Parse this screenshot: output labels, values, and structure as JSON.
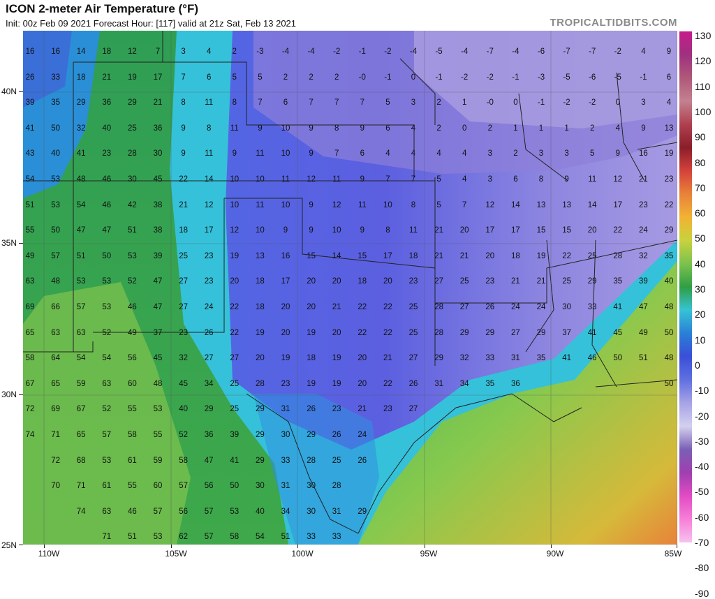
{
  "header": {
    "title": "ICON 2-meter Air Temperature (°F)",
    "subtitle": "Init: 00z Feb 09 2021   Forecast Hour: [117]   valid at 21z Sat, Feb 13 2021",
    "brand": "TROPICALTIDBITS.COM"
  },
  "axes": {
    "lat_labels": [
      "40N",
      "35N",
      "30N",
      "25N"
    ],
    "lon_labels": [
      "110W",
      "105W",
      "100W",
      "95W",
      "90W",
      "85W"
    ]
  },
  "colorbar": {
    "labels": [
      "130",
      "120",
      "110",
      "100",
      "90",
      "80",
      "70",
      "60",
      "50",
      "40",
      "30",
      "20",
      "10",
      "0",
      "-10",
      "-20",
      "-30",
      "-40",
      "-50",
      "-60",
      "-70",
      "-80",
      "-90"
    ],
    "colors": [
      "#c51b8a",
      "#a03080",
      "#b0587a",
      "#c3818f",
      "#b04050",
      "#8a1e2a",
      "#d4423b",
      "#e8823a",
      "#f2b233",
      "#c8d23d",
      "#7cc24e",
      "#2f9e44",
      "#36c3d4",
      "#2a7fd6",
      "#3a4fd8",
      "#6070e0",
      "#a7a3e6",
      "#d3d0ee",
      "#7a5fb5",
      "#a03fb0",
      "#e24bc4",
      "#f77fd8",
      "#f6c2ee"
    ]
  },
  "temperatures": [
    [
      "16",
      "16",
      "14",
      "18",
      "12",
      "7",
      "3",
      "4",
      "2",
      "-3",
      "-4",
      "-4",
      "-2",
      "-1",
      "-2",
      "-4",
      "-5",
      "-4",
      "-7",
      "-4",
      "-6",
      "-7",
      "-7",
      "-2",
      "4",
      "9"
    ],
    [
      "26",
      "33",
      "18",
      "21",
      "19",
      "17",
      "7",
      "6",
      "5",
      "5",
      "2",
      "2",
      "2",
      "-0",
      "-1",
      "0",
      "-1",
      "-2",
      "-2",
      "-1",
      "-3",
      "-5",
      "-6",
      "-5",
      "-1",
      "6"
    ],
    [
      "39",
      "35",
      "29",
      "36",
      "29",
      "21",
      "8",
      "11",
      "8",
      "7",
      "6",
      "7",
      "7",
      "7",
      "5",
      "3",
      "2",
      "1",
      "-0",
      "0",
      "-1",
      "-2",
      "-2",
      "0",
      "3",
      "4"
    ],
    [
      "41",
      "50",
      "32",
      "40",
      "25",
      "36",
      "9",
      "8",
      "11",
      "9",
      "10",
      "9",
      "8",
      "9",
      "6",
      "4",
      "2",
      "0",
      "2",
      "1",
      "1",
      "1",
      "2",
      "4",
      "9",
      "13"
    ],
    [
      "43",
      "40",
      "41",
      "23",
      "28",
      "30",
      "9",
      "11",
      "9",
      "11",
      "10",
      "9",
      "7",
      "6",
      "4",
      "4",
      "4",
      "4",
      "3",
      "2",
      "3",
      "3",
      "5",
      "9",
      "16",
      "19"
    ],
    [
      "54",
      "53",
      "48",
      "46",
      "30",
      "45",
      "22",
      "14",
      "10",
      "10",
      "11",
      "12",
      "11",
      "9",
      "7",
      "7",
      "5",
      "4",
      "3",
      "6",
      "8",
      "9",
      "11",
      "12",
      "21",
      "23"
    ],
    [
      "51",
      "53",
      "54",
      "46",
      "42",
      "38",
      "21",
      "12",
      "10",
      "11",
      "10",
      "9",
      "12",
      "11",
      "10",
      "8",
      "5",
      "7",
      "12",
      "14",
      "13",
      "13",
      "14",
      "17",
      "23",
      "22"
    ],
    [
      "55",
      "50",
      "47",
      "47",
      "51",
      "38",
      "18",
      "17",
      "12",
      "10",
      "9",
      "9",
      "10",
      "9",
      "8",
      "11",
      "21",
      "20",
      "17",
      "17",
      "15",
      "15",
      "20",
      "22",
      "24",
      "29"
    ],
    [
      "49",
      "57",
      "51",
      "50",
      "53",
      "39",
      "25",
      "23",
      "19",
      "13",
      "16",
      "15",
      "14",
      "15",
      "17",
      "18",
      "21",
      "21",
      "20",
      "18",
      "19",
      "22",
      "25",
      "28",
      "32",
      "35"
    ],
    [
      "63",
      "48",
      "53",
      "53",
      "52",
      "47",
      "27",
      "23",
      "20",
      "18",
      "17",
      "20",
      "20",
      "18",
      "20",
      "23",
      "27",
      "25",
      "23",
      "21",
      "21",
      "25",
      "29",
      "35",
      "39",
      "40"
    ],
    [
      "69",
      "66",
      "57",
      "53",
      "46",
      "47",
      "27",
      "24",
      "22",
      "18",
      "20",
      "20",
      "21",
      "22",
      "22",
      "25",
      "28",
      "27",
      "26",
      "24",
      "24",
      "30",
      "33",
      "41",
      "47",
      "48"
    ],
    [
      "65",
      "63",
      "63",
      "52",
      "49",
      "37",
      "23",
      "26",
      "22",
      "19",
      "20",
      "19",
      "20",
      "22",
      "22",
      "25",
      "28",
      "29",
      "29",
      "27",
      "29",
      "37",
      "41",
      "45",
      "49",
      "50"
    ],
    [
      "58",
      "64",
      "54",
      "54",
      "56",
      "45",
      "32",
      "27",
      "27",
      "20",
      "19",
      "18",
      "19",
      "20",
      "21",
      "27",
      "29",
      "32",
      "33",
      "31",
      "35",
      "41",
      "46",
      "50",
      "51",
      "48"
    ],
    [
      "67",
      "65",
      "59",
      "63",
      "60",
      "48",
      "45",
      "34",
      "25",
      "28",
      "23",
      "19",
      "19",
      "20",
      "22",
      "26",
      "31",
      "34",
      "35",
      "36",
      "",
      "",
      "",
      "",
      "",
      "50"
    ],
    [
      "72",
      "69",
      "67",
      "52",
      "55",
      "53",
      "40",
      "29",
      "25",
      "29",
      "31",
      "26",
      "23",
      "21",
      "23",
      "27",
      "",
      "",
      "",
      "",
      "",
      "",
      "",
      "",
      "",
      ""
    ],
    [
      "74",
      "71",
      "65",
      "57",
      "58",
      "55",
      "52",
      "36",
      "39",
      "29",
      "30",
      "29",
      "26",
      "24",
      "",
      "",
      "",
      "",
      "",
      "",
      "",
      "",
      "",
      "",
      "",
      ""
    ],
    [
      "",
      "72",
      "68",
      "53",
      "61",
      "59",
      "58",
      "47",
      "41",
      "29",
      "33",
      "28",
      "25",
      "26",
      "",
      "",
      "",
      "",
      "",
      "",
      "",
      "",
      "",
      "",
      "",
      ""
    ],
    [
      "",
      "70",
      "71",
      "61",
      "55",
      "60",
      "57",
      "56",
      "50",
      "30",
      "31",
      "30",
      "28",
      "",
      "",
      "",
      "",
      "",
      "",
      "",
      "",
      "",
      "",
      "",
      "",
      ""
    ],
    [
      "",
      "",
      "74",
      "63",
      "46",
      "57",
      "56",
      "57",
      "53",
      "40",
      "34",
      "30",
      "31",
      "29",
      "",
      "",
      "",
      "",
      "",
      "",
      "",
      "",
      "",
      "",
      "",
      ""
    ],
    [
      "",
      "",
      "",
      "71",
      "51",
      "53",
      "62",
      "57",
      "58",
      "54",
      "51",
      "33",
      "33",
      "",
      "",
      "",
      "",
      "",
      "",
      "",
      "",
      "",
      "",
      "",
      "",
      ""
    ]
  ]
}
